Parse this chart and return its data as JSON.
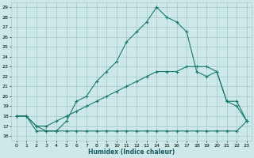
{
  "xlabel": "Humidex (Indice chaleur)",
  "xlim": [
    -0.5,
    23.5
  ],
  "ylim": [
    15.5,
    29.5
  ],
  "yticks": [
    16,
    17,
    18,
    19,
    20,
    21,
    22,
    23,
    24,
    25,
    26,
    27,
    28,
    29
  ],
  "xticks": [
    0,
    1,
    2,
    3,
    4,
    5,
    6,
    7,
    8,
    9,
    10,
    11,
    12,
    13,
    14,
    15,
    16,
    17,
    18,
    19,
    20,
    21,
    22,
    23
  ],
  "bg_color": "#cce8e8",
  "line_color": "#1a7a6e",
  "grid_color": "#aacccc",
  "line1_x": [
    0,
    1,
    2,
    3,
    4,
    5,
    6,
    7,
    8,
    9,
    10,
    11,
    12,
    13,
    14,
    15,
    16,
    17,
    18,
    19,
    20,
    21,
    22,
    23
  ],
  "line1_y": [
    18.0,
    18.0,
    17.0,
    16.5,
    16.5,
    17.5,
    19.5,
    20.0,
    21.5,
    22.5,
    23.5,
    25.5,
    26.5,
    27.5,
    29.0,
    28.0,
    27.5,
    26.5,
    22.5,
    22.0,
    22.5,
    19.5,
    19.0,
    17.5
  ],
  "line2_x": [
    0,
    1,
    2,
    3,
    4,
    5,
    6,
    7,
    8,
    9,
    10,
    11,
    12,
    13,
    14,
    15,
    16,
    17,
    18,
    19,
    20,
    21,
    22,
    23
  ],
  "line2_y": [
    18.0,
    18.0,
    17.0,
    17.0,
    17.5,
    18.0,
    18.5,
    19.0,
    19.5,
    20.0,
    20.5,
    21.0,
    21.5,
    22.0,
    22.5,
    22.5,
    22.5,
    23.0,
    23.0,
    23.0,
    22.5,
    19.5,
    19.5,
    17.5
  ],
  "line3_x": [
    0,
    1,
    2,
    3,
    4,
    5,
    6,
    7,
    8,
    9,
    10,
    11,
    12,
    13,
    14,
    15,
    16,
    17,
    18,
    19,
    20,
    21,
    22,
    23
  ],
  "line3_y": [
    18.0,
    18.0,
    16.5,
    16.5,
    16.5,
    16.5,
    16.5,
    16.5,
    16.5,
    16.5,
    16.5,
    16.5,
    16.5,
    16.5,
    16.5,
    16.5,
    16.5,
    16.5,
    16.5,
    16.5,
    16.5,
    16.5,
    16.5,
    17.5
  ]
}
